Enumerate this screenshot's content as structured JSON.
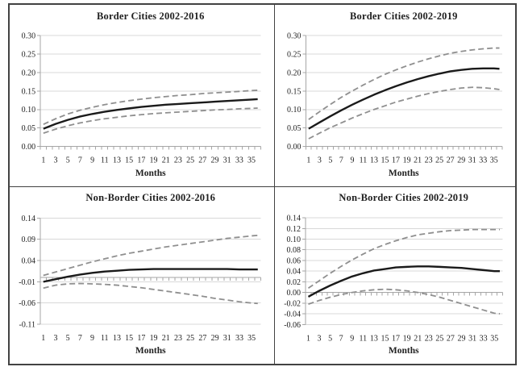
{
  "figure": {
    "background": "#ffffff",
    "border_color": "#424242",
    "grid_color": "#d8d8d8",
    "axis_color": "#a6a6a6",
    "solid_line_color": "#1a1a1a",
    "dashed_line_color": "#8f8f8f",
    "text_color": "#212121"
  },
  "chart_data": [
    {
      "type": "line",
      "title": "Border Cities 2002-2016",
      "xlabel": "Months",
      "ylim": [
        0.0,
        0.3
      ],
      "yticks": [
        0.3,
        0.25,
        0.2,
        0.15,
        0.1,
        0.05,
        0.0
      ],
      "ytick_decimals": 2,
      "axis_cross_y": 0.0,
      "grid": true,
      "legend": "none",
      "x": [
        1,
        3,
        5,
        7,
        9,
        11,
        13,
        15,
        17,
        19,
        21,
        23,
        25,
        27,
        29,
        31,
        33,
        35,
        36
      ],
      "xticks": [
        1,
        3,
        5,
        7,
        9,
        11,
        13,
        15,
        17,
        19,
        21,
        23,
        25,
        27,
        29,
        31,
        33,
        35
      ],
      "series": [
        {
          "name": "estimate",
          "style": "solid",
          "values": [
            0.048,
            0.061,
            0.072,
            0.081,
            0.088,
            0.094,
            0.099,
            0.103,
            0.107,
            0.11,
            0.113,
            0.115,
            0.117,
            0.119,
            0.121,
            0.123,
            0.125,
            0.127,
            0.128
          ]
        },
        {
          "name": "upper-ci",
          "style": "dashed",
          "values": [
            0.06,
            0.075,
            0.088,
            0.098,
            0.106,
            0.113,
            0.119,
            0.124,
            0.128,
            0.132,
            0.135,
            0.138,
            0.14,
            0.143,
            0.145,
            0.147,
            0.149,
            0.151,
            0.152
          ]
        },
        {
          "name": "lower-ci",
          "style": "dashed",
          "values": [
            0.036,
            0.047,
            0.056,
            0.064,
            0.07,
            0.075,
            0.079,
            0.083,
            0.086,
            0.089,
            0.091,
            0.093,
            0.095,
            0.097,
            0.099,
            0.1,
            0.102,
            0.103,
            0.104
          ]
        }
      ]
    },
    {
      "type": "line",
      "title": "Border Cities 2002-2019",
      "xlabel": "Months",
      "ylim": [
        0.0,
        0.3
      ],
      "yticks": [
        0.3,
        0.25,
        0.2,
        0.15,
        0.1,
        0.05,
        0.0
      ],
      "ytick_decimals": 2,
      "axis_cross_y": 0.0,
      "grid": true,
      "legend": "none",
      "x": [
        1,
        3,
        5,
        7,
        9,
        11,
        13,
        15,
        17,
        19,
        21,
        23,
        25,
        27,
        29,
        31,
        33,
        35,
        36
      ],
      "xticks": [
        1,
        3,
        5,
        7,
        9,
        11,
        13,
        15,
        17,
        19,
        21,
        23,
        25,
        27,
        29,
        31,
        33,
        35
      ],
      "series": [
        {
          "name": "estimate",
          "style": "solid",
          "values": [
            0.048,
            0.065,
            0.082,
            0.098,
            0.113,
            0.127,
            0.14,
            0.152,
            0.163,
            0.173,
            0.182,
            0.19,
            0.197,
            0.203,
            0.207,
            0.21,
            0.211,
            0.211,
            0.21
          ]
        },
        {
          "name": "upper-ci",
          "style": "dashed",
          "values": [
            0.073,
            0.094,
            0.114,
            0.133,
            0.15,
            0.166,
            0.181,
            0.195,
            0.207,
            0.218,
            0.228,
            0.237,
            0.245,
            0.252,
            0.257,
            0.261,
            0.264,
            0.266,
            0.266
          ]
        },
        {
          "name": "lower-ci",
          "style": "dashed",
          "values": [
            0.021,
            0.036,
            0.051,
            0.064,
            0.077,
            0.089,
            0.1,
            0.11,
            0.12,
            0.128,
            0.136,
            0.143,
            0.149,
            0.154,
            0.158,
            0.16,
            0.159,
            0.156,
            0.154
          ]
        }
      ]
    },
    {
      "type": "line",
      "title": "Non-Border Cities 2002-2016",
      "xlabel": "Months",
      "ylim": [
        -0.11,
        0.14
      ],
      "yticks": [
        0.14,
        0.09,
        0.04,
        -0.01,
        -0.06,
        -0.11
      ],
      "ytick_decimals": 2,
      "axis_cross_y": 0.0,
      "grid": true,
      "legend": "none",
      "x": [
        1,
        3,
        5,
        7,
        9,
        11,
        13,
        15,
        17,
        19,
        21,
        23,
        25,
        27,
        29,
        31,
        33,
        35,
        36
      ],
      "xticks": [
        1,
        3,
        5,
        7,
        9,
        11,
        13,
        15,
        17,
        19,
        21,
        23,
        25,
        27,
        29,
        31,
        33,
        35
      ],
      "series": [
        {
          "name": "estimate",
          "style": "solid",
          "values": [
            -0.01,
            -0.004,
            0.002,
            0.007,
            0.011,
            0.014,
            0.016,
            0.018,
            0.019,
            0.02,
            0.02,
            0.02,
            0.02,
            0.02,
            0.02,
            0.02,
            0.019,
            0.019,
            0.019
          ]
        },
        {
          "name": "upper-ci",
          "style": "dashed",
          "values": [
            0.005,
            0.013,
            0.021,
            0.029,
            0.037,
            0.044,
            0.051,
            0.057,
            0.062,
            0.067,
            0.072,
            0.076,
            0.08,
            0.084,
            0.088,
            0.092,
            0.095,
            0.098,
            0.099
          ]
        },
        {
          "name": "lower-ci",
          "style": "dashed",
          "values": [
            -0.025,
            -0.018,
            -0.015,
            -0.014,
            -0.015,
            -0.016,
            -0.018,
            -0.021,
            -0.024,
            -0.028,
            -0.032,
            -0.036,
            -0.04,
            -0.044,
            -0.049,
            -0.053,
            -0.057,
            -0.06,
            -0.061
          ]
        }
      ]
    },
    {
      "type": "line",
      "title": "Non-Border Cities 2002-2019",
      "xlabel": "Months",
      "ylim": [
        -0.06,
        0.14
      ],
      "yticks": [
        0.14,
        0.12,
        0.1,
        0.08,
        0.06,
        0.04,
        0.02,
        0.0,
        -0.02,
        -0.04,
        -0.06
      ],
      "ytick_decimals": 2,
      "axis_cross_y": 0.0,
      "grid": true,
      "legend": "none",
      "x": [
        1,
        3,
        5,
        7,
        9,
        11,
        13,
        15,
        17,
        19,
        21,
        23,
        25,
        27,
        29,
        31,
        33,
        35,
        36
      ],
      "xticks": [
        1,
        3,
        5,
        7,
        9,
        11,
        13,
        15,
        17,
        19,
        21,
        23,
        25,
        27,
        29,
        31,
        33,
        35
      ],
      "series": [
        {
          "name": "estimate",
          "style": "solid",
          "values": [
            -0.008,
            0.003,
            0.013,
            0.022,
            0.03,
            0.036,
            0.041,
            0.044,
            0.047,
            0.048,
            0.049,
            0.049,
            0.048,
            0.047,
            0.046,
            0.044,
            0.042,
            0.04,
            0.04
          ]
        },
        {
          "name": "upper-ci",
          "style": "dashed",
          "values": [
            0.008,
            0.022,
            0.036,
            0.049,
            0.061,
            0.072,
            0.082,
            0.09,
            0.097,
            0.103,
            0.108,
            0.111,
            0.114,
            0.116,
            0.117,
            0.118,
            0.118,
            0.118,
            0.118
          ]
        },
        {
          "name": "lower-ci",
          "style": "dashed",
          "values": [
            -0.022,
            -0.015,
            -0.009,
            -0.004,
            0.0,
            0.003,
            0.005,
            0.006,
            0.005,
            0.003,
            0.0,
            -0.004,
            -0.009,
            -0.015,
            -0.021,
            -0.027,
            -0.033,
            -0.039,
            -0.04
          ]
        }
      ]
    }
  ]
}
